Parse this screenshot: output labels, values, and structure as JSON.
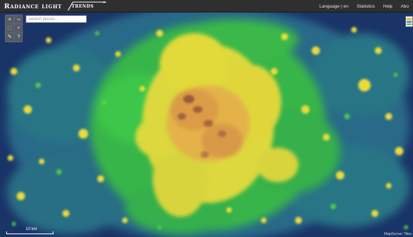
{
  "header": {
    "logo_main": "Radiance light",
    "logo_sub": "trends",
    "nav": {
      "language_label": "Language",
      "language_sep": "|",
      "language_value": "en",
      "statistics": "Statistics",
      "help": "Help",
      "about": "Abo"
    }
  },
  "search": {
    "placeholder": "Search places..."
  },
  "controls": {
    "zoom_in": "+",
    "zoom_out": "−",
    "select": "⬚",
    "zoom_box": "⌕",
    "edit": "✎",
    "help": "?"
  },
  "scale": {
    "label": "10 km"
  },
  "attribution": "MapServer Tiles",
  "colors": {
    "header_bg": "#2f2f2f",
    "map_dark": "#1a3d7a",
    "map_teal": "#2f8f96",
    "map_green": "#41c944",
    "map_yellow": "#f2d23a",
    "map_orange": "#e0a040",
    "map_brown": "#a0643c"
  },
  "icons": {
    "layer_toggle": "layers-icon"
  }
}
